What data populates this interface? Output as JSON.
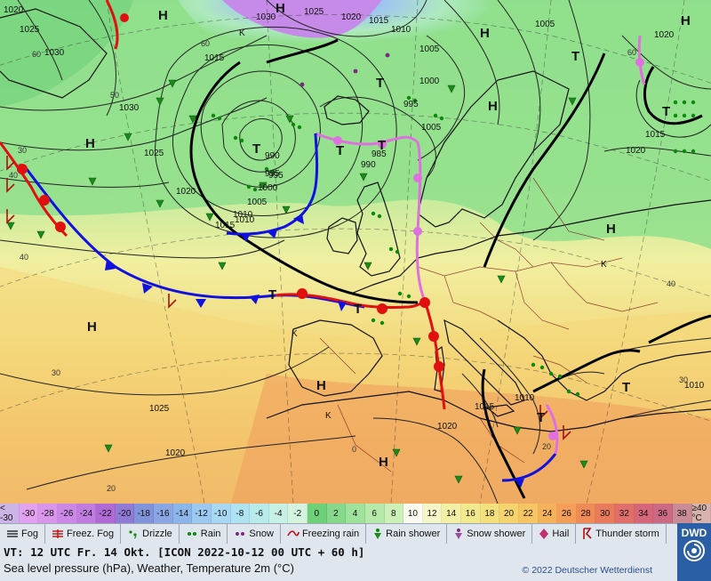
{
  "map": {
    "pressure_centers": [
      {
        "type": "H"
      },
      {
        "type": "H"
      },
      {
        "type": "H"
      },
      {
        "type": "H"
      },
      {
        "type": "H"
      },
      {
        "type": "H"
      },
      {
        "type": "H"
      },
      {
        "type": "H"
      },
      {
        "type": "H"
      },
      {
        "type": "H"
      },
      {
        "type": "T"
      },
      {
        "type": "T"
      },
      {
        "type": "T"
      },
      {
        "type": "T"
      },
      {
        "type": "T"
      },
      {
        "type": "T"
      },
      {
        "type": "T"
      },
      {
        "type": "T"
      },
      {
        "type": "T"
      },
      {
        "type": "T"
      },
      {
        "type": "K"
      },
      {
        "type": "K"
      },
      {
        "type": "K"
      },
      {
        "type": "K"
      }
    ],
    "isobar_labels": [
      "1020",
      "1030",
      "1025",
      "1015",
      "1030",
      "1025",
      "1020",
      "1010",
      "1005",
      "995",
      "990",
      "985",
      "990",
      "995",
      "1000",
      "1005",
      "1010",
      "1015",
      "1000",
      "995",
      "1005",
      "1010",
      "1015",
      "1020",
      "1025",
      "1020",
      "1010",
      "1015",
      "1020",
      "1010",
      "1015",
      "1020",
      "1020",
      "1025",
      "1030",
      "1005"
    ],
    "temp_labels": [
      "60",
      "60",
      "50",
      "40",
      "30",
      "20",
      "60",
      "40",
      "30",
      "0",
      "40",
      "20",
      "30"
    ],
    "fronts": [
      "cold",
      "warm",
      "occluded"
    ]
  },
  "temperature_scale": {
    "unit": "°C",
    "cells": [
      {
        "label": "< -30",
        "color": "#cdb4e6"
      },
      {
        "label": "-30",
        "color": "#e3a2f0"
      },
      {
        "label": "-28",
        "color": "#d995ec"
      },
      {
        "label": "-26",
        "color": "#cc88e6"
      },
      {
        "label": "-24",
        "color": "#c17cdf"
      },
      {
        "label": "-22",
        "color": "#b06ad6"
      },
      {
        "label": "-20",
        "color": "#8f7ad6"
      },
      {
        "label": "-18",
        "color": "#8194db"
      },
      {
        "label": "-16",
        "color": "#8aa6e3"
      },
      {
        "label": "-14",
        "color": "#8ab6ea"
      },
      {
        "label": "-12",
        "color": "#9cc9f1"
      },
      {
        "label": "-10",
        "color": "#a9d8f4"
      },
      {
        "label": "-8",
        "color": "#afe3f2"
      },
      {
        "label": "-6",
        "color": "#b8ecec"
      },
      {
        "label": "-4",
        "color": "#c8f1e6"
      },
      {
        "label": "-2",
        "color": "#d4f5dd"
      },
      {
        "label": "0",
        "color": "#6fd07a"
      },
      {
        "label": "2",
        "color": "#86d98a"
      },
      {
        "label": "4",
        "color": "#9ee29b"
      },
      {
        "label": "6",
        "color": "#b6eaab"
      },
      {
        "label": "8",
        "color": "#cdf0b8"
      },
      {
        "label": "10",
        "color": "#fbfdf0"
      },
      {
        "label": "12",
        "color": "#f6f6c8"
      },
      {
        "label": "14",
        "color": "#f3f0a6"
      },
      {
        "label": "16",
        "color": "#f2e98e"
      },
      {
        "label": "18",
        "color": "#f4e07c"
      },
      {
        "label": "20",
        "color": "#f6d46d"
      },
      {
        "label": "22",
        "color": "#f7c562"
      },
      {
        "label": "24",
        "color": "#f6b25b"
      },
      {
        "label": "26",
        "color": "#f49e57"
      },
      {
        "label": "28",
        "color": "#f08a56"
      },
      {
        "label": "30",
        "color": "#ea7a5c"
      },
      {
        "label": "32",
        "color": "#e06e6a"
      },
      {
        "label": "34",
        "color": "#d66779"
      },
      {
        "label": "36",
        "color": "#cc6a86"
      },
      {
        "label": "38",
        "color": "#c98b95"
      },
      {
        "label": "≥40 °C",
        "color": "#d7b3ad"
      }
    ]
  },
  "weather_legend": [
    {
      "icon": "fog-icon",
      "label": "Fog"
    },
    {
      "icon": "freezing-fog-icon",
      "label": "Freez. Fog"
    },
    {
      "icon": "drizzle-icon",
      "label": "Drizzle"
    },
    {
      "icon": "rain-icon",
      "label": "Rain"
    },
    {
      "icon": "snow-icon",
      "label": "Snow"
    },
    {
      "icon": "freezing-rain-icon",
      "label": "Freezing rain"
    },
    {
      "icon": "rain-shower-icon",
      "label": "Rain shower"
    },
    {
      "icon": "snow-shower-icon",
      "label": "Snow shower"
    },
    {
      "icon": "hail-icon",
      "label": "Hail"
    },
    {
      "icon": "thunderstorm-icon",
      "label": "Thunder storm"
    }
  ],
  "footer": {
    "valid_time": "VT: 12 UTC Fr.  14 Okt. [ICON 2022-10-12  00 UTC + 60 h]",
    "description": "Sea level pressure (hPa), Weather, Temperature 2m (°C)",
    "copyright": "© 2022 Deutscher Wetterdienst",
    "logo_text": "DWD"
  },
  "colors": {
    "cold_front": "#1010e0",
    "warm_front": "#e01010",
    "occlusion": "#e070e0",
    "footer_bg": "#dfe6ee",
    "logo_bg": "#2a5fa6"
  }
}
